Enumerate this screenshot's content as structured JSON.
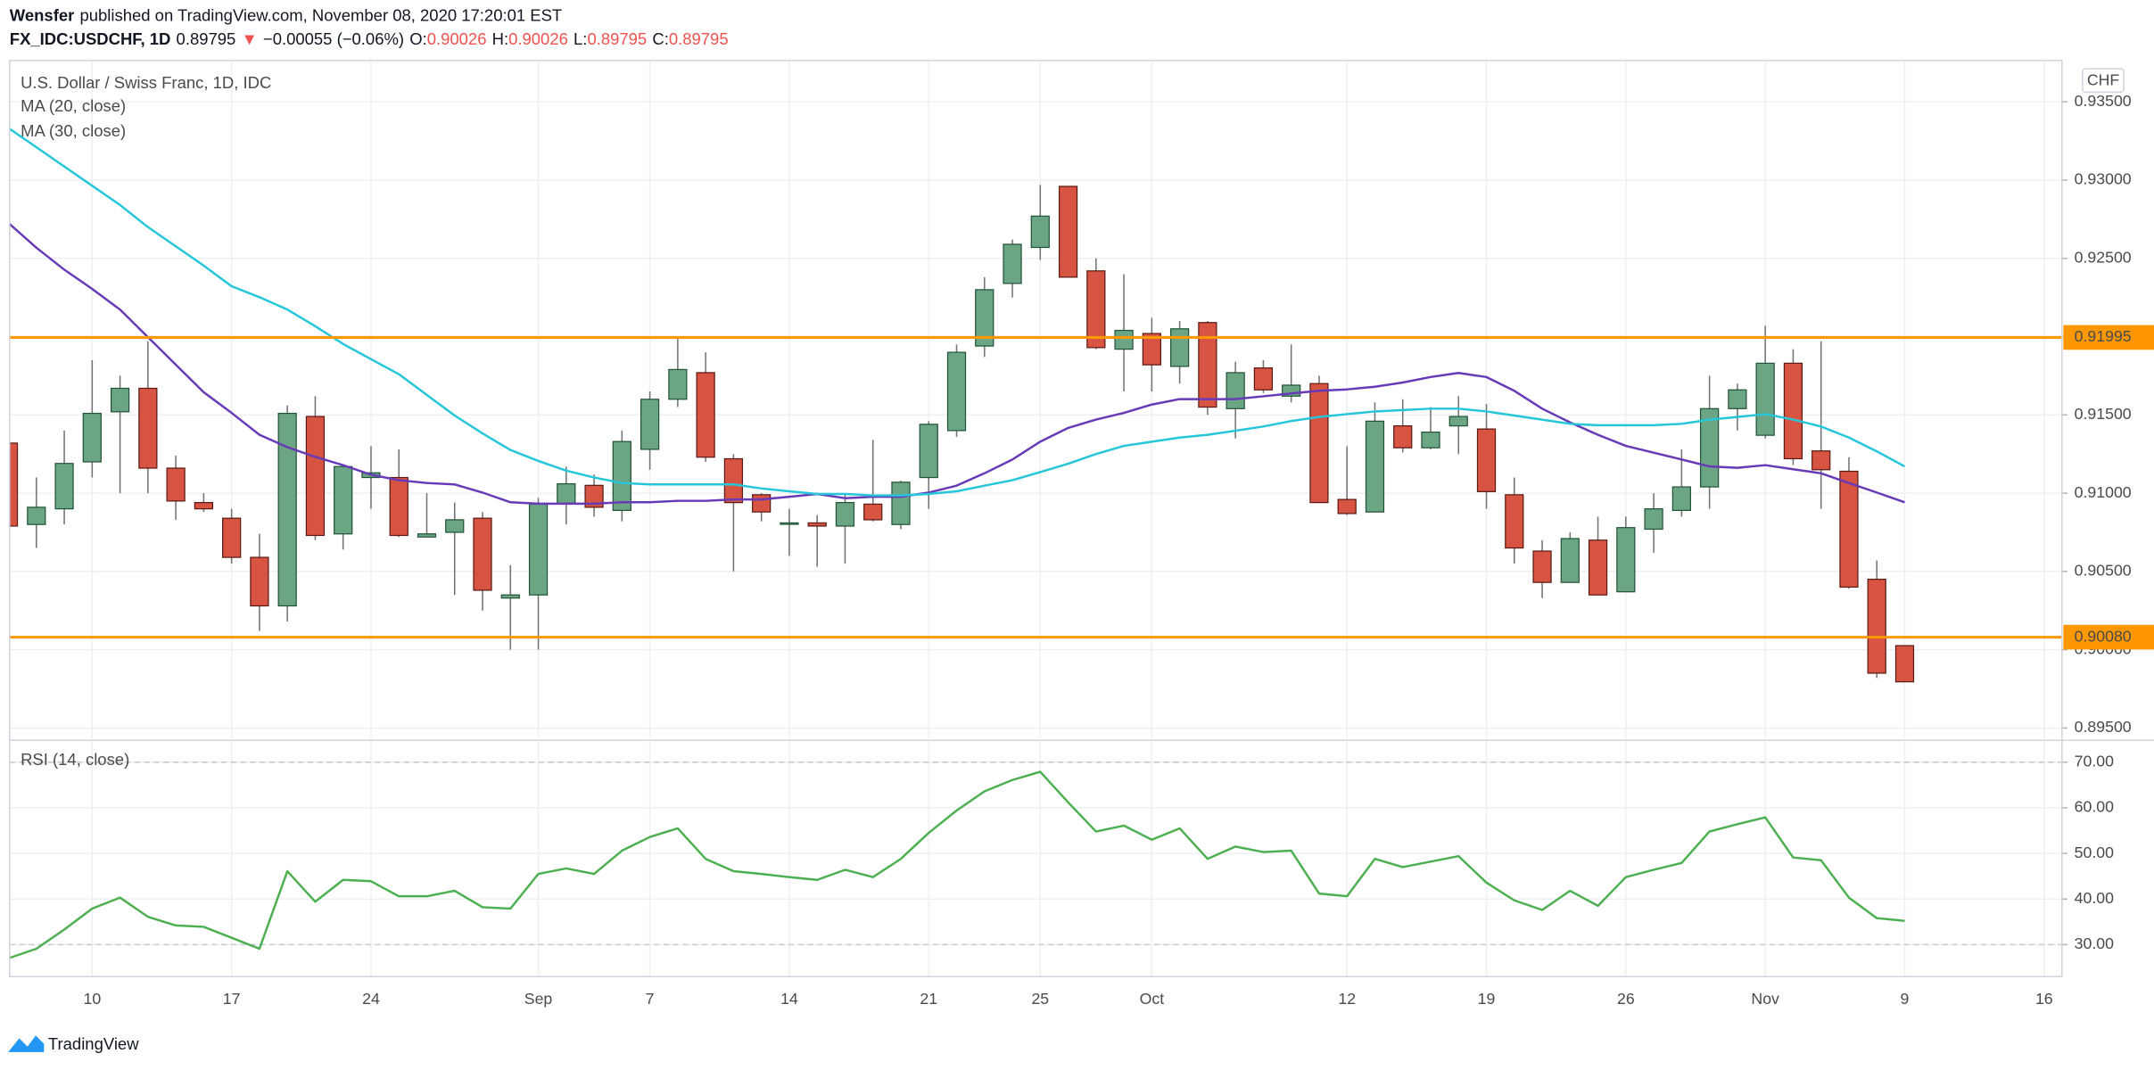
{
  "header": {
    "author": "Wensfer",
    "published": "published on TradingView.com, November 08, 2020 17:20:01 EST",
    "symbol": "FX_IDC:USDCHF, 1D",
    "last": "0.89795",
    "arrow": "▼",
    "change": "−0.00055 (−0.06%)",
    "ohlc": [
      {
        "key": "O:",
        "value": "0.90026"
      },
      {
        "key": "H:",
        "value": "0.90026"
      },
      {
        "key": "L:",
        "value": "0.89795"
      },
      {
        "key": "C:",
        "value": "0.89795"
      }
    ]
  },
  "footer": {
    "brand": "TradingView"
  },
  "chart_data": [
    {
      "type": "candlestick",
      "title": "U.S. Dollar / Swiss Franc, 1D, IDC",
      "unit": "CHF",
      "up_color": "#6ba583",
      "down_color": "#d75442",
      "up_border": "#225437",
      "down_border": "#5b1a13",
      "wick_color": "#737375",
      "open": [
        0.9132,
        0.908,
        0.909,
        0.912,
        0.9152,
        0.9167,
        0.9116,
        0.9094,
        0.9084,
        0.9059,
        0.9028,
        0.9149,
        0.9074,
        0.911,
        0.911,
        0.9072,
        0.9075,
        0.9084,
        0.9033,
        0.9035,
        0.9093,
        0.9105,
        0.9089,
        0.9128,
        0.916,
        0.9177,
        0.9122,
        0.9099,
        0.9081,
        0.9081,
        0.9079,
        0.9093,
        0.908,
        0.911,
        0.914,
        0.9194,
        0.9234,
        0.9257,
        0.9296,
        0.9242,
        0.9192,
        0.9202,
        0.9181,
        0.9209,
        0.9154,
        0.918,
        0.9162,
        0.917,
        0.9096,
        0.9088,
        0.9143,
        0.9129,
        0.9143,
        0.9141,
        0.9099,
        0.9063,
        0.9043,
        0.907,
        0.9037,
        0.9077,
        0.9089,
        0.9104,
        0.9154,
        0.9137,
        0.9183,
        0.9127,
        0.9114,
        0.9045,
        0.90026
      ],
      "high": [
        0.914,
        0.911,
        0.914,
        0.9185,
        0.9175,
        0.9197,
        0.9124,
        0.91,
        0.909,
        0.9074,
        0.9156,
        0.9162,
        0.9118,
        0.913,
        0.9128,
        0.91,
        0.9094,
        0.9088,
        0.9054,
        0.9097,
        0.9117,
        0.9112,
        0.914,
        0.9165,
        0.92,
        0.919,
        0.9125,
        0.91,
        0.909,
        0.9086,
        0.91,
        0.9134,
        0.9108,
        0.9146,
        0.9195,
        0.9238,
        0.9262,
        0.9297,
        0.9296,
        0.925,
        0.924,
        0.9212,
        0.921,
        0.921,
        0.9184,
        0.9185,
        0.9195,
        0.9175,
        0.913,
        0.9158,
        0.916,
        0.9155,
        0.9162,
        0.9157,
        0.911,
        0.907,
        0.9075,
        0.9085,
        0.9085,
        0.91,
        0.9128,
        0.9175,
        0.917,
        0.9207,
        0.9192,
        0.9197,
        0.9123,
        0.9057,
        0.90026
      ],
      "low": [
        0.9075,
        0.9065,
        0.908,
        0.911,
        0.91,
        0.91,
        0.9083,
        0.9088,
        0.9055,
        0.9012,
        0.9018,
        0.907,
        0.9064,
        0.909,
        0.9072,
        0.9072,
        0.9035,
        0.9025,
        0.9,
        0.9,
        0.908,
        0.9085,
        0.9082,
        0.9115,
        0.9155,
        0.912,
        0.905,
        0.9082,
        0.906,
        0.9053,
        0.9055,
        0.9082,
        0.9077,
        0.909,
        0.9136,
        0.9187,
        0.9225,
        0.9249,
        0.9238,
        0.9192,
        0.9165,
        0.9165,
        0.917,
        0.915,
        0.9135,
        0.9164,
        0.9158,
        0.9094,
        0.9086,
        0.9088,
        0.9126,
        0.9128,
        0.9125,
        0.909,
        0.9055,
        0.9033,
        0.9043,
        0.9035,
        0.9037,
        0.9062,
        0.9085,
        0.909,
        0.914,
        0.9135,
        0.9118,
        0.909,
        0.9039,
        0.8982,
        0.89795
      ],
      "close": [
        0.9079,
        0.9091,
        0.9119,
        0.9151,
        0.9167,
        0.9116,
        0.9095,
        0.909,
        0.9059,
        0.9028,
        0.9151,
        0.9073,
        0.9117,
        0.9113,
        0.9073,
        0.9074,
        0.9083,
        0.9038,
        0.9035,
        0.9093,
        0.9106,
        0.9091,
        0.9133,
        0.916,
        0.9179,
        0.9123,
        0.9094,
        0.9088,
        0.9081,
        0.9079,
        0.9094,
        0.9083,
        0.9107,
        0.9144,
        0.919,
        0.923,
        0.9259,
        0.9277,
        0.9238,
        0.9193,
        0.9204,
        0.9182,
        0.9205,
        0.9155,
        0.9177,
        0.9166,
        0.9169,
        0.9094,
        0.9087,
        0.9146,
        0.9129,
        0.9139,
        0.9149,
        0.9101,
        0.9065,
        0.9043,
        0.9071,
        0.9035,
        0.9078,
        0.909,
        0.9104,
        0.9154,
        0.9166,
        0.9183,
        0.9122,
        0.9115,
        0.904,
        0.8985,
        0.89795
      ],
      "series": [
        {
          "name": "MA (20, close)",
          "color": "#673ab7",
          "values": [
            0.92726,
            0.92568,
            0.92428,
            0.92305,
            0.92173,
            0.91997,
            0.91821,
            0.91645,
            0.91513,
            0.91373,
            0.91294,
            0.91232,
            0.91179,
            0.91118,
            0.91083,
            0.91065,
            0.91056,
            0.91004,
            0.90942,
            0.90933,
            0.90933,
            0.90933,
            0.90942,
            0.90942,
            0.90951,
            0.90951,
            0.9096,
            0.9096,
            0.90977,
            0.90995,
            0.90968,
            0.90977,
            0.90977,
            0.91004,
            0.91048,
            0.91127,
            0.91215,
            0.91329,
            0.91417,
            0.9147,
            0.91513,
            0.91566,
            0.91601,
            0.91601,
            0.91601,
            0.91619,
            0.91637,
            0.91654,
            0.91663,
            0.9168,
            0.91707,
            0.91742,
            0.91768,
            0.91742,
            0.91654,
            0.9154,
            0.91452,
            0.91373,
            0.91302,
            0.91259,
            0.91215,
            0.91171,
            0.91162,
            0.91179,
            0.91153,
            0.91127,
            0.91065,
            0.91004,
            0.90942
          ]
        },
        {
          "name": "MA (30, close)",
          "color": "#26c6da",
          "values": [
            0.93333,
            0.9321,
            0.93087,
            0.92964,
            0.92841,
            0.927,
            0.92577,
            0.92454,
            0.92322,
            0.92252,
            0.92173,
            0.92067,
            0.91953,
            0.91856,
            0.9176,
            0.91628,
            0.91496,
            0.91382,
            0.91276,
            0.91206,
            0.91144,
            0.911,
            0.91065,
            0.91056,
            0.91056,
            0.91056,
            0.91056,
            0.9103,
            0.91012,
            0.90995,
            0.90995,
            0.90986,
            0.90986,
            0.90995,
            0.91012,
            0.91048,
            0.91083,
            0.91135,
            0.91188,
            0.9125,
            0.91302,
            0.91329,
            0.91355,
            0.91373,
            0.91399,
            0.91426,
            0.91461,
            0.91487,
            0.91505,
            0.91522,
            0.91531,
            0.9154,
            0.9154,
            0.91522,
            0.91496,
            0.9147,
            0.91443,
            0.91434,
            0.91434,
            0.91434,
            0.91443,
            0.9147,
            0.91487,
            0.91505,
            0.9147,
            0.91426,
            0.91355,
            0.91267,
            0.91171
          ]
        }
      ],
      "hlines": [
        {
          "value": 0.91995,
          "label": "0.91995",
          "color": "#ff9800"
        },
        {
          "value": 0.9008,
          "label": "0.90080",
          "color": "#ff9800"
        }
      ],
      "ylim": [
        0.8943,
        0.93764
      ],
      "yticks": [
        {
          "value": 0.895,
          "label": "0.89500"
        },
        {
          "value": 0.9,
          "label": "0.90000"
        },
        {
          "value": 0.905,
          "label": "0.90500"
        },
        {
          "value": 0.91,
          "label": "0.91000"
        },
        {
          "value": 0.915,
          "label": "0.91500"
        },
        {
          "value": 0.92,
          "label": "0.92000"
        },
        {
          "value": 0.925,
          "label": "0.92500"
        },
        {
          "value": 0.93,
          "label": "0.93000"
        },
        {
          "value": 0.935,
          "label": "0.93500"
        }
      ],
      "grid": true
    },
    {
      "type": "line",
      "series": [
        {
          "name": "RSI (14, close)",
          "color": "#4caf50",
          "values": [
            27.0,
            29.1,
            33.3,
            37.9,
            40.3,
            36.1,
            34.2,
            33.9,
            31.5,
            29.1,
            46.1,
            39.4,
            44.2,
            43.9,
            40.6,
            40.6,
            41.8,
            38.2,
            37.9,
            45.5,
            46.7,
            45.5,
            50.6,
            53.6,
            55.5,
            48.8,
            46.1,
            45.5,
            44.8,
            44.2,
            46.4,
            44.8,
            48.8,
            54.5,
            59.4,
            63.6,
            66.1,
            67.9,
            61.2,
            54.8,
            56.1,
            53.0,
            55.5,
            48.8,
            51.5,
            50.3,
            50.6,
            41.2,
            40.6,
            48.8,
            47.0,
            48.2,
            49.4,
            43.6,
            39.7,
            37.6,
            41.8,
            38.5,
            44.8,
            46.4,
            47.9,
            54.8,
            56.4,
            57.9,
            49.1,
            48.5,
            40.3,
            35.8,
            35.2
          ]
        }
      ],
      "levels": [
        30,
        70
      ],
      "ylim": [
        23,
        74.5
      ],
      "yticks": [
        {
          "value": 30,
          "label": "30.00"
        },
        {
          "value": 40,
          "label": "40.00"
        },
        {
          "value": 50,
          "label": "50.00"
        },
        {
          "value": 60,
          "label": "60.00"
        },
        {
          "value": 70,
          "label": "70.00"
        }
      ],
      "xlim": [
        0.04,
        73.64
      ],
      "xticks": [
        {
          "value": 3,
          "label": "10"
        },
        {
          "value": 8,
          "label": "17"
        },
        {
          "value": 13,
          "label": "24"
        },
        {
          "value": 19,
          "label": "Sep"
        },
        {
          "value": 23,
          "label": "7"
        },
        {
          "value": 28,
          "label": "14"
        },
        {
          "value": 33,
          "label": "21"
        },
        {
          "value": 37,
          "label": "25"
        },
        {
          "value": 41,
          "label": "Oct"
        },
        {
          "value": 48,
          "label": "12"
        },
        {
          "value": 53,
          "label": "19"
        },
        {
          "value": 58,
          "label": "26"
        },
        {
          "value": 63,
          "label": "Nov"
        },
        {
          "value": 68,
          "label": "9"
        },
        {
          "value": 73,
          "label": "16"
        }
      ],
      "grid": true
    }
  ]
}
